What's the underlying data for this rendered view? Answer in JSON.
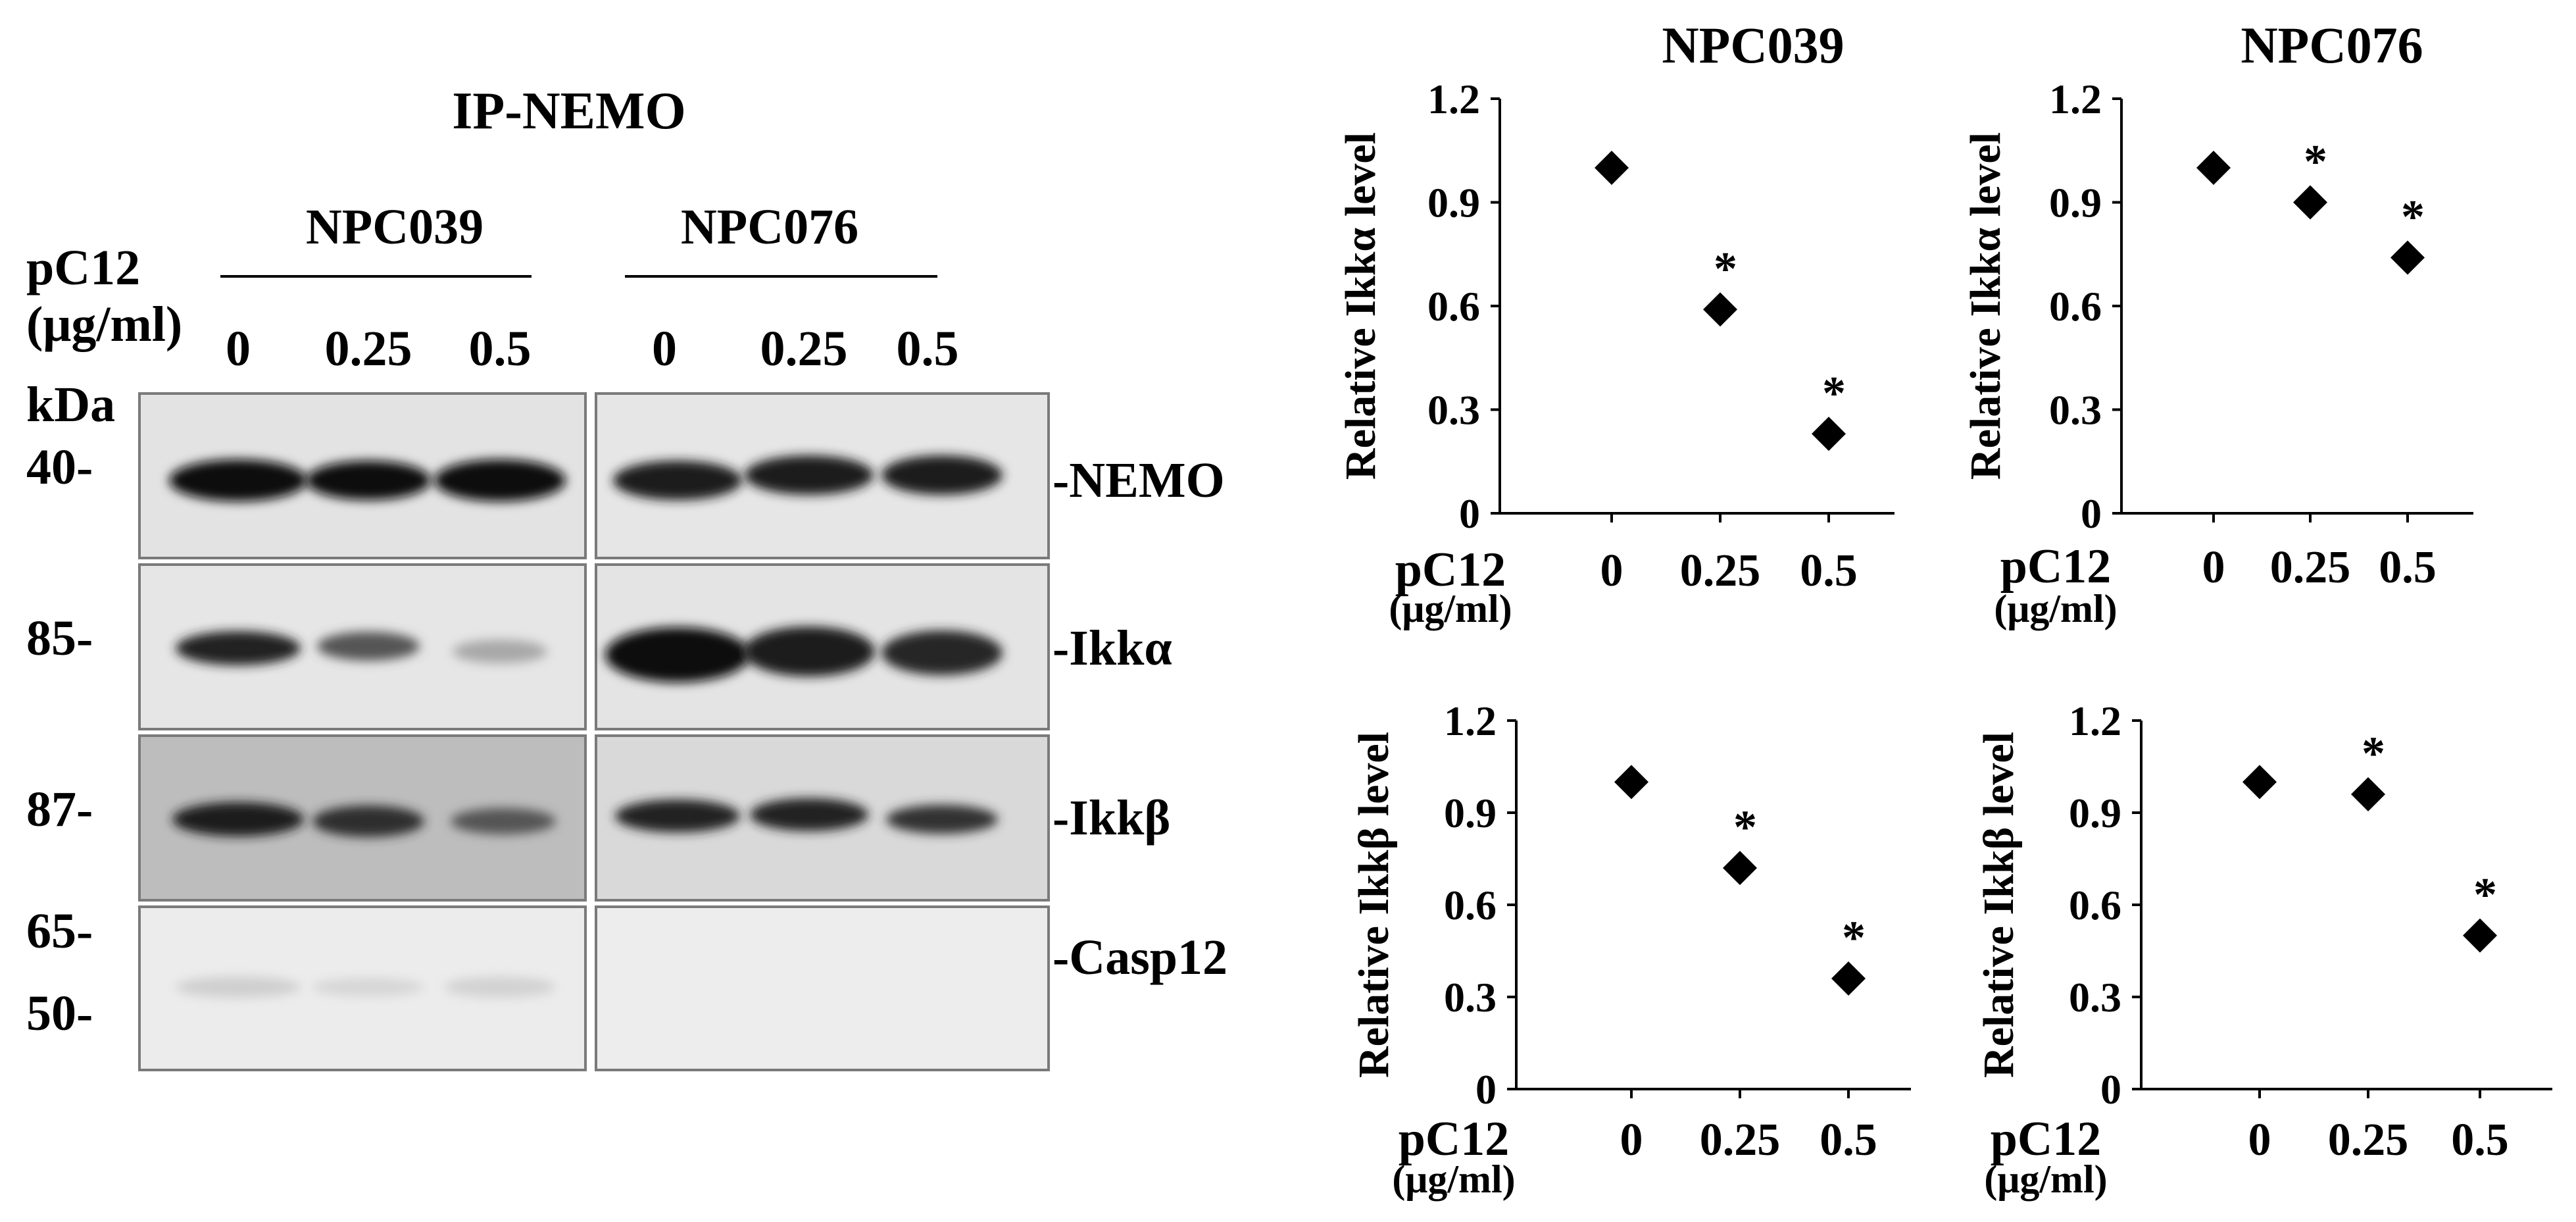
{
  "blot": {
    "title": "IP-NEMO",
    "treatment_label_line1": "pC12",
    "treatment_label_line2": "(μg/ml)",
    "kda_label": "kDa",
    "cell_lines": [
      {
        "name": "NPC039",
        "doses": [
          "0",
          "0.25",
          "0.5"
        ]
      },
      {
        "name": "NPC076",
        "doses": [
          "0",
          "0.25",
          "0.5"
        ]
      }
    ],
    "rows": [
      {
        "label": "-NEMO",
        "markers": [
          "40-"
        ],
        "band_intensity": [
          [
            0.95,
            0.93,
            0.95
          ],
          [
            0.88,
            0.86,
            0.86
          ]
        ],
        "bg": [
          "#e3e3e3",
          "#e6e6e6"
        ]
      },
      {
        "label": "-Ikkα",
        "markers": [
          "85-"
        ],
        "band_intensity": [
          [
            0.85,
            0.65,
            0.3
          ],
          [
            0.95,
            0.9,
            0.82
          ]
        ],
        "bg": [
          "#e6e6e6",
          "#e4e4e4"
        ]
      },
      {
        "label": "-Ikkβ",
        "markers": [
          "87-"
        ],
        "band_intensity": [
          [
            0.8,
            0.7,
            0.45
          ],
          [
            0.75,
            0.77,
            0.62
          ]
        ],
        "bg": [
          "#bdbdbd",
          "#d9d9d9"
        ]
      },
      {
        "label": "-Casp12",
        "markers": [
          "65-",
          "50-"
        ],
        "band_intensity": [
          [
            0.05,
            0.04,
            0.05
          ],
          [
            0.0,
            0.0,
            0.0
          ]
        ],
        "bg": [
          "#ececec",
          "#ededed"
        ]
      }
    ]
  },
  "chart_data": [
    {
      "type": "scatter",
      "title": "NPC039",
      "ylabel": "Relative Ikkα level",
      "xlabel_line1": "pC12",
      "xlabel_line2": "(μg/ml)",
      "categories": [
        "0",
        "0.25",
        "0.5"
      ],
      "values": [
        1.0,
        0.59,
        0.23
      ],
      "significant": [
        false,
        true,
        true
      ],
      "marker_text": "*",
      "ylim": [
        0,
        1.2
      ],
      "yticks": [
        "0",
        "0.3",
        "0.6",
        "0.9",
        "1.2"
      ]
    },
    {
      "type": "scatter",
      "title": "NPC076",
      "ylabel": "Relative Ikkα level",
      "xlabel_line1": "pC12",
      "xlabel_line2": "(μg/ml)",
      "categories": [
        "0",
        "0.25",
        "0.5"
      ],
      "values": [
        1.0,
        0.9,
        0.74
      ],
      "significant": [
        false,
        true,
        true
      ],
      "marker_text": "*",
      "ylim": [
        0,
        1.2
      ],
      "yticks": [
        "0",
        "0.3",
        "0.6",
        "0.9",
        "1.2"
      ]
    },
    {
      "type": "scatter",
      "title": "",
      "ylabel": "Relative Ikkβ level",
      "xlabel_line1": "pC12",
      "xlabel_line2": "(μg/ml)",
      "categories": [
        "0",
        "0.25",
        "0.5"
      ],
      "values": [
        1.0,
        0.72,
        0.36
      ],
      "significant": [
        false,
        true,
        true
      ],
      "marker_text": "*",
      "ylim": [
        0,
        1.2
      ],
      "yticks": [
        "0",
        "0.3",
        "0.6",
        "0.9",
        "1.2"
      ]
    },
    {
      "type": "scatter",
      "title": "",
      "ylabel": "Relative Ikkβ level",
      "xlabel_line1": "pC12",
      "xlabel_line2": "(μg/ml)",
      "categories": [
        "0",
        "0.25",
        "0.5"
      ],
      "values": [
        1.0,
        0.96,
        0.5
      ],
      "significant": [
        false,
        true,
        true
      ],
      "marker_text": "*",
      "ylim": [
        0,
        1.2
      ],
      "yticks": [
        "0",
        "0.3",
        "0.6",
        "0.9",
        "1.2"
      ]
    }
  ]
}
